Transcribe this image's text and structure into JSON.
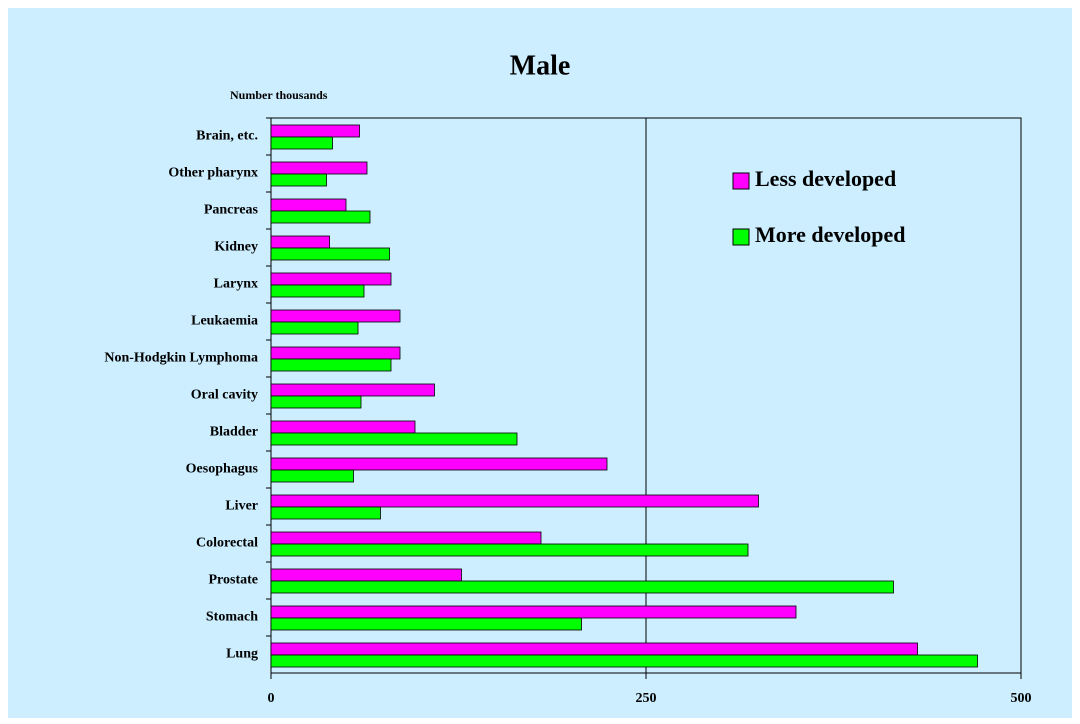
{
  "chart_data": {
    "type": "hbar",
    "title": "Male",
    "subtitle": "Number thousands",
    "categories": [
      "Brain, etc.",
      "Other pharynx",
      "Pancreas",
      "Kidney",
      "Larynx",
      "Leukaemia",
      "Non-Hodgkin Lymphoma",
      "Oral cavity",
      "Bladder",
      "Oesophagus",
      "Liver",
      "Colorectal",
      "Prostate",
      "Stomach",
      "Lung"
    ],
    "series": [
      {
        "name": "Less developed",
        "color": "#ff00ff",
        "values": [
          59,
          64,
          50,
          39,
          80,
          86,
          86,
          109,
          96,
          224,
          325,
          180,
          127,
          350,
          431
        ]
      },
      {
        "name": "More developed",
        "color": "#00ff00",
        "values": [
          41,
          37,
          66,
          79,
          62,
          58,
          80,
          60,
          164,
          55,
          73,
          318,
          415,
          207,
          471
        ]
      }
    ],
    "xlim": [
      0,
      500
    ],
    "xticks": [
      0,
      250,
      500
    ],
    "grid": true,
    "legend": "upper right"
  }
}
